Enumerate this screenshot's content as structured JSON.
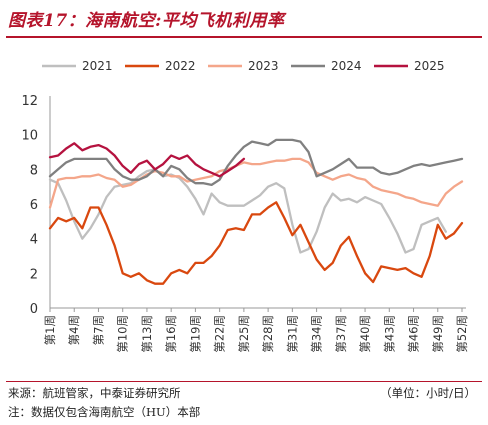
{
  "title": "图表17：海南航空:平均飞机利用率",
  "source": "来源：航班管家，中泰证券研究所",
  "unit": "（单位：小时/日）",
  "note": "注：数据仅包含海南航空（HU）本部",
  "chart_data": {
    "type": "line",
    "ylim": [
      0,
      12
    ],
    "yticks": [
      0,
      2,
      4,
      6,
      8,
      10,
      12
    ],
    "x_tick_labels": [
      "第1周",
      "第4周",
      "第7周",
      "第10周",
      "第13周",
      "第16周",
      "第19周",
      "第22周",
      "第25周",
      "第28周",
      "第31周",
      "第34周",
      "第37周",
      "第40周",
      "第43周",
      "第46周",
      "第49周",
      "第52周"
    ],
    "x_tick_weeks": [
      1,
      4,
      7,
      10,
      13,
      16,
      19,
      22,
      25,
      28,
      31,
      34,
      37,
      40,
      43,
      46,
      49,
      52
    ],
    "legend_position": "top",
    "series": [
      {
        "name": "2021",
        "color": "#bfbfbf",
        "x": [
          1,
          2,
          3,
          4,
          5,
          6,
          7,
          8,
          9,
          10,
          11,
          12,
          13,
          14,
          15,
          16,
          17,
          18,
          19,
          20,
          21,
          22,
          23,
          24,
          25,
          26,
          27,
          28,
          29,
          30,
          31,
          32,
          33,
          34,
          35,
          36,
          37,
          38,
          39,
          40,
          41,
          42,
          43,
          44,
          45,
          46,
          47,
          48,
          49,
          50
        ],
        "values": [
          7.4,
          7.2,
          6.2,
          5.0,
          4.0,
          4.6,
          5.4,
          6.4,
          7.0,
          7.1,
          7.2,
          7.6,
          7.9,
          8.0,
          7.6,
          7.7,
          7.5,
          7.0,
          6.3,
          5.4,
          6.6,
          6.1,
          5.9,
          5.9,
          5.9,
          6.2,
          6.5,
          7.0,
          7.2,
          6.9,
          4.8,
          3.2,
          3.4,
          4.4,
          5.8,
          6.6,
          6.2,
          6.3,
          6.1,
          6.4,
          6.2,
          6.0,
          5.2,
          4.3,
          3.2,
          3.4,
          4.8,
          5.0,
          5.2,
          4.4
        ]
      },
      {
        "name": "2022",
        "color": "#d9480f",
        "x": [
          1,
          2,
          3,
          4,
          5,
          6,
          7,
          8,
          9,
          10,
          11,
          12,
          13,
          14,
          15,
          16,
          17,
          18,
          19,
          20,
          21,
          22,
          23,
          24,
          25,
          26,
          27,
          28,
          29,
          30,
          31,
          32,
          33,
          34,
          35,
          36,
          37,
          38,
          39,
          40,
          41,
          42,
          43,
          44,
          45,
          46,
          47,
          48,
          49,
          50,
          51,
          52
        ],
        "values": [
          4.6,
          5.2,
          5.0,
          5.2,
          4.6,
          5.8,
          5.8,
          4.8,
          3.6,
          2.0,
          1.8,
          2.0,
          1.6,
          1.4,
          1.4,
          2.0,
          2.2,
          2.0,
          2.6,
          2.6,
          3.0,
          3.6,
          4.5,
          4.6,
          4.5,
          5.4,
          5.4,
          5.8,
          6.1,
          5.2,
          4.2,
          4.8,
          3.8,
          2.8,
          2.2,
          2.6,
          3.6,
          4.1,
          3.0,
          2.0,
          1.5,
          2.4,
          2.3,
          2.2,
          2.3,
          2.0,
          1.8,
          3.0,
          4.8,
          4.0,
          4.3,
          4.9
        ]
      },
      {
        "name": "2023",
        "color": "#f4a68a",
        "x": [
          1,
          2,
          3,
          4,
          5,
          6,
          7,
          8,
          9,
          10,
          11,
          12,
          13,
          14,
          15,
          16,
          17,
          18,
          19,
          20,
          21,
          22,
          23,
          24,
          25,
          26,
          27,
          28,
          29,
          30,
          31,
          32,
          33,
          34,
          35,
          36,
          37,
          38,
          39,
          40,
          41,
          42,
          43,
          44,
          45,
          46,
          47,
          48,
          49,
          50,
          51,
          52
        ],
        "values": [
          5.8,
          7.4,
          7.5,
          7.5,
          7.6,
          7.6,
          7.7,
          7.5,
          7.4,
          7.0,
          7.1,
          7.4,
          7.7,
          7.9,
          7.8,
          7.6,
          7.6,
          7.3,
          7.4,
          7.5,
          7.6,
          7.9,
          8.0,
          8.2,
          8.4,
          8.3,
          8.3,
          8.4,
          8.5,
          8.5,
          8.6,
          8.6,
          8.4,
          7.8,
          7.6,
          7.4,
          7.6,
          7.7,
          7.5,
          7.4,
          7.0,
          6.8,
          6.7,
          6.6,
          6.4,
          6.3,
          6.1,
          6.0,
          5.9,
          6.6,
          7.0,
          7.3
        ]
      },
      {
        "name": "2024",
        "color": "#808080",
        "x": [
          1,
          2,
          3,
          4,
          5,
          6,
          7,
          8,
          9,
          10,
          11,
          12,
          13,
          14,
          15,
          16,
          17,
          18,
          19,
          20,
          21,
          22,
          23,
          24,
          25,
          26,
          27,
          28,
          29,
          30,
          31,
          32,
          33,
          34,
          35,
          36,
          37,
          38,
          39,
          40,
          41,
          42,
          43,
          44,
          45,
          46,
          47,
          48,
          49,
          50,
          51,
          52
        ],
        "values": [
          7.6,
          8.0,
          8.4,
          8.6,
          8.6,
          8.6,
          8.6,
          8.6,
          8.0,
          7.6,
          7.4,
          7.4,
          7.6,
          8.0,
          7.6,
          8.2,
          8.0,
          7.5,
          7.2,
          7.2,
          7.1,
          7.4,
          8.2,
          8.8,
          9.3,
          9.6,
          9.5,
          9.4,
          9.7,
          9.7,
          9.7,
          9.6,
          9.0,
          7.6,
          7.8,
          8.0,
          8.3,
          8.6,
          8.1,
          8.1,
          8.1,
          7.8,
          7.7,
          7.8,
          8.0,
          8.2,
          8.3,
          8.2,
          8.3,
          8.4,
          8.5,
          8.6
        ]
      },
      {
        "name": "2025",
        "color": "#b5123f",
        "x": [
          1,
          2,
          3,
          4,
          5,
          6,
          7,
          8,
          9,
          10,
          11,
          12,
          13,
          14,
          15,
          16,
          17,
          18,
          19,
          20,
          21,
          22,
          23,
          24,
          25
        ],
        "values": [
          8.7,
          8.8,
          9.2,
          9.5,
          9.1,
          9.3,
          9.4,
          9.2,
          8.8,
          8.2,
          7.8,
          8.3,
          8.5,
          8.0,
          8.3,
          8.8,
          8.6,
          8.8,
          8.3,
          8.0,
          7.8,
          7.6,
          7.9,
          8.2,
          8.6
        ]
      }
    ]
  }
}
